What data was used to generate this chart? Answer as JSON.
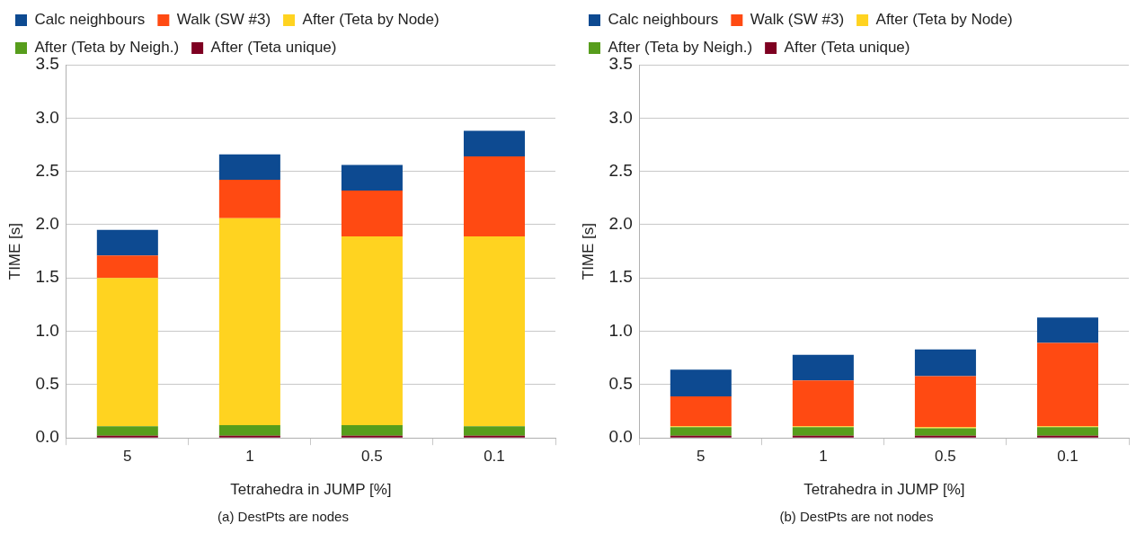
{
  "chart_data": [
    {
      "type": "bar",
      "stacked": true,
      "categories": [
        "5",
        "1",
        "0.5",
        "0.1"
      ],
      "xlabel": "Tetrahedra in JUMP [%]",
      "ylabel": "TIME [s]",
      "ylim": [
        0,
        3.5
      ],
      "yticks": [
        {
          "value": 0,
          "label": "0.0"
        },
        {
          "value": 0.5,
          "label": "0.5"
        },
        {
          "value": 1,
          "label": "1.0"
        },
        {
          "value": 1.5,
          "label": "1.5"
        },
        {
          "value": 2,
          "label": "2.0"
        },
        {
          "value": 2.5,
          "label": "2.5"
        },
        {
          "value": 3,
          "label": "3.0"
        },
        {
          "value": 3.5,
          "label": "3.5"
        }
      ],
      "grid": "y",
      "legend": "top left",
      "annotations": [
        "(a) DestPts are nodes"
      ],
      "series": [
        {
          "name": "After (Teta unique)",
          "color": "#7e0021",
          "values": [
            0.02,
            0.02,
            0.02,
            0.02
          ]
        },
        {
          "name": "After (Teta by Neigh.)",
          "color": "#579d1c",
          "values": [
            0.09,
            0.1,
            0.1,
            0.09
          ]
        },
        {
          "name": "After (Teta by Node)",
          "color": "#ffd320",
          "values": [
            1.39,
            1.94,
            1.77,
            1.78
          ]
        },
        {
          "name": "Walk (SW #3)",
          "color": "#ff4a12",
          "values": [
            0.21,
            0.36,
            0.43,
            0.75
          ]
        },
        {
          "name": "Calc neighbours",
          "color": "#0d4a91",
          "values": [
            0.24,
            0.24,
            0.24,
            0.24
          ]
        }
      ]
    },
    {
      "type": "bar",
      "stacked": true,
      "categories": [
        "5",
        "1",
        "0.5",
        "0.1"
      ],
      "xlabel": "Tetrahedra in JUMP [%]",
      "ylabel": "TIME [s]",
      "ylim": [
        0,
        3.5
      ],
      "yticks": [
        {
          "value": 0,
          "label": "0.0"
        },
        {
          "value": 0.5,
          "label": "0.5"
        },
        {
          "value": 1,
          "label": "1.0"
        },
        {
          "value": 1.5,
          "label": "1.5"
        },
        {
          "value": 2,
          "label": "2.0"
        },
        {
          "value": 2.5,
          "label": "2.5"
        },
        {
          "value": 3,
          "label": "3.0"
        },
        {
          "value": 3.5,
          "label": "3.5"
        }
      ],
      "grid": "y",
      "legend": "top left",
      "annotations": [
        "(b) DestPts are not nodes"
      ],
      "series": [
        {
          "name": "After (Teta unique)",
          "color": "#7e0021",
          "values": [
            0.02,
            0.02,
            0.02,
            0.02
          ]
        },
        {
          "name": "After (Teta by Neigh.)",
          "color": "#579d1c",
          "values": [
            0.08,
            0.08,
            0.07,
            0.08
          ]
        },
        {
          "name": "After (Teta by Node)",
          "color": "#ffd320",
          "values": [
            0.01,
            0.01,
            0.01,
            0.01
          ]
        },
        {
          "name": "Walk (SW #3)",
          "color": "#ff4a12",
          "values": [
            0.28,
            0.43,
            0.48,
            0.78
          ]
        },
        {
          "name": "Calc neighbours",
          "color": "#0d4a91",
          "values": [
            0.25,
            0.24,
            0.25,
            0.24
          ]
        }
      ]
    }
  ]
}
